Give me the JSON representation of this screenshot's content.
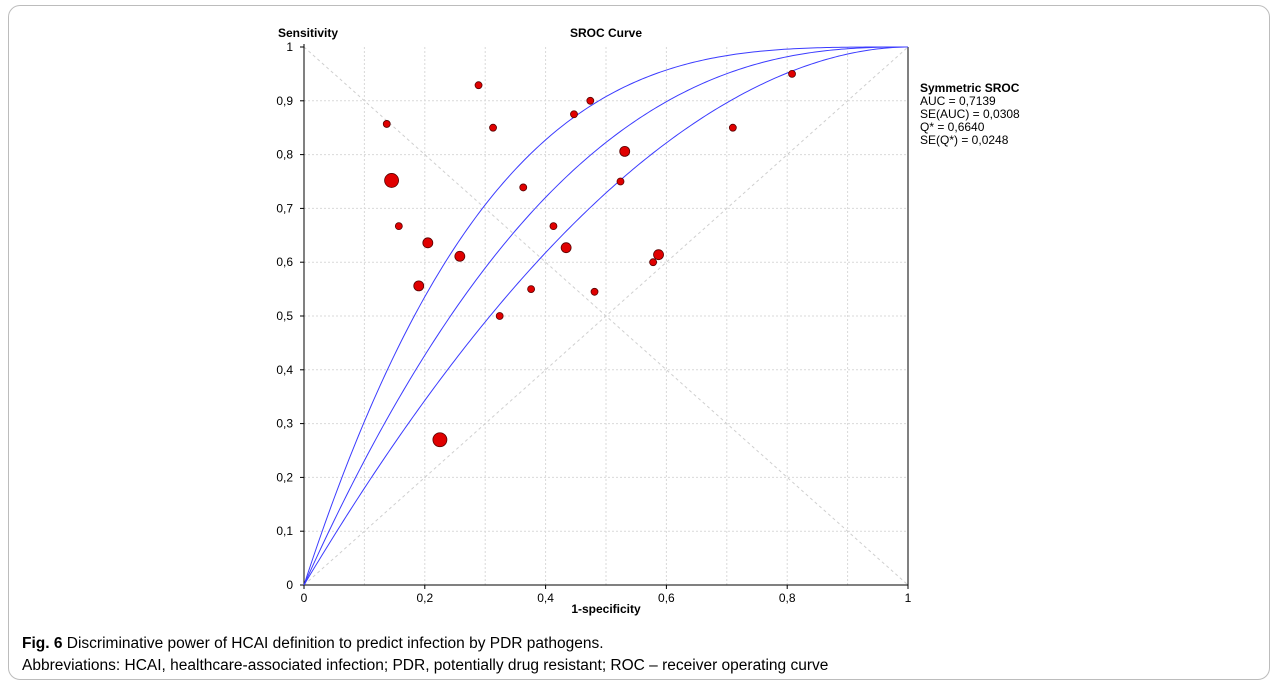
{
  "chart_data": {
    "type": "scatter",
    "title": "SROC Curve",
    "xlabel": "1-specificity",
    "ylabel": "Sensitivity",
    "xlim": [
      0,
      1
    ],
    "ylim": [
      0,
      1
    ],
    "x_ticks": [
      "0",
      "0,2",
      "0,4",
      "0,6",
      "0,8",
      "1"
    ],
    "y_ticks": [
      "0",
      "0,1",
      "0,2",
      "0,3",
      "0,4",
      "0,5",
      "0,6",
      "0,7",
      "0,8",
      "0,9",
      "1"
    ],
    "grid": true,
    "points": [
      {
        "x": 0.137,
        "y": 0.857,
        "size": "small"
      },
      {
        "x": 0.145,
        "y": 0.752,
        "size": "large"
      },
      {
        "x": 0.157,
        "y": 0.667,
        "size": "small"
      },
      {
        "x": 0.19,
        "y": 0.556,
        "size": "medium"
      },
      {
        "x": 0.205,
        "y": 0.636,
        "size": "medium"
      },
      {
        "x": 0.225,
        "y": 0.27,
        "size": "large"
      },
      {
        "x": 0.258,
        "y": 0.611,
        "size": "medium"
      },
      {
        "x": 0.289,
        "y": 0.929,
        "size": "small"
      },
      {
        "x": 0.313,
        "y": 0.85,
        "size": "small"
      },
      {
        "x": 0.324,
        "y": 0.5,
        "size": "small"
      },
      {
        "x": 0.363,
        "y": 0.739,
        "size": "small"
      },
      {
        "x": 0.376,
        "y": 0.55,
        "size": "small"
      },
      {
        "x": 0.413,
        "y": 0.667,
        "size": "small"
      },
      {
        "x": 0.434,
        "y": 0.627,
        "size": "medium"
      },
      {
        "x": 0.447,
        "y": 0.875,
        "size": "small"
      },
      {
        "x": 0.474,
        "y": 0.9,
        "size": "small"
      },
      {
        "x": 0.481,
        "y": 0.545,
        "size": "small"
      },
      {
        "x": 0.524,
        "y": 0.75,
        "size": "small"
      },
      {
        "x": 0.531,
        "y": 0.806,
        "size": "medium"
      },
      {
        "x": 0.578,
        "y": 0.6,
        "size": "small"
      },
      {
        "x": 0.587,
        "y": 0.614,
        "size": "medium"
      },
      {
        "x": 0.71,
        "y": 0.85,
        "size": "small"
      },
      {
        "x": 0.808,
        "y": 0.95,
        "size": "small"
      }
    ],
    "curves": [
      {
        "name": "SROC",
        "auc": 0.7139
      },
      {
        "name": "upper",
        "auc": 0.7747
      },
      {
        "name": "lower",
        "auc": 0.6531
      }
    ],
    "reference_lines": [
      "diagonal",
      "anti-diagonal"
    ],
    "point_color": "#e00000",
    "curve_color": "#3b3bff",
    "annotation": {
      "heading": "Symmetric SROC",
      "lines": [
        "AUC = 0,7139",
        "SE(AUC) = 0,0308",
        "Q* = 0,6640",
        "SE(Q*) = 0,0248"
      ]
    }
  },
  "caption": {
    "label": "Fig. 6",
    "text": " Discriminative power of HCAI definition to predict infection by PDR pathogens.",
    "abbreviations": "Abbreviations: HCAI, healthcare-associated infection; PDR, potentially drug resistant; ROC – receiver operating curve"
  }
}
